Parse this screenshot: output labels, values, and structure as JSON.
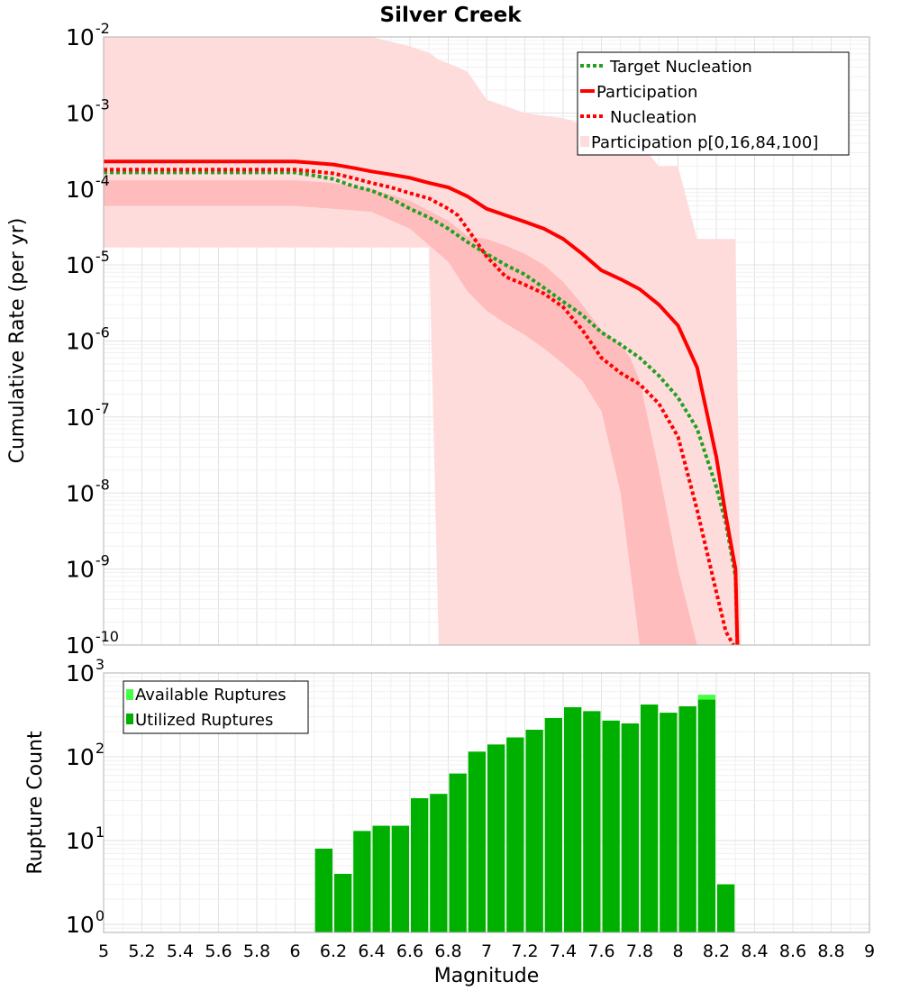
{
  "figure": {
    "title": "Silver Creek",
    "xlabel": "Magnitude"
  },
  "chart_data": [
    {
      "type": "line",
      "title": "Silver Creek",
      "ylabel": "Cumulative Rate (per yr)",
      "xlabel": "Magnitude",
      "xlim": [
        5,
        9
      ],
      "ylim": [
        1e-10,
        0.01
      ],
      "yscale": "log",
      "ytick_exponents": [
        "-2",
        "-3",
        "-4",
        "-5",
        "-6",
        "-7",
        "-8",
        "-9",
        "-10"
      ],
      "ytick_values": [
        0.01,
        0.001,
        0.0001,
        1e-05,
        1e-06,
        1e-07,
        1e-08,
        1e-09,
        1e-10
      ],
      "legend_position": "top-right",
      "legend": [
        "Target Nucleation",
        "Participation",
        "Nucleation",
        "Participation p[0,16,84,100]"
      ],
      "bands": [
        {
          "name": "Participation p[0,100]",
          "color": "#ffdcdc",
          "x": [
            5.0,
            5.2,
            5.4,
            5.6,
            5.8,
            6.0,
            6.2,
            6.4,
            6.6,
            6.7,
            6.75,
            6.8,
            6.9,
            7.0,
            7.2,
            7.4,
            7.6,
            7.8,
            7.9,
            8.0,
            8.1,
            8.2,
            8.3,
            8.33
          ],
          "upper": [
            0.01,
            0.01,
            0.01,
            0.01,
            0.01,
            0.01,
            0.01,
            0.01,
            0.0075,
            0.0062,
            0.005,
            0.0045,
            0.0035,
            0.0015,
            0.001,
            0.00085,
            0.0006,
            0.0004,
            0.0002,
            0.0002,
            2.2e-05,
            2.2e-05,
            2.2e-05,
            1e-10
          ],
          "lower": [
            1.7e-05,
            1.7e-05,
            1.7e-05,
            1.7e-05,
            1.7e-05,
            1.7e-05,
            1.7e-05,
            1.7e-05,
            1.7e-05,
            1.7e-05,
            1e-10,
            1e-10,
            1e-10,
            1e-10,
            1e-10,
            1e-10,
            1e-10,
            1e-10,
            1e-10,
            1e-10,
            1e-10,
            1e-10,
            1e-10,
            1e-10
          ]
        },
        {
          "name": "Participation p[16,84]",
          "color": "#ffbcbc",
          "x": [
            5.0,
            5.2,
            5.4,
            5.6,
            5.8,
            6.0,
            6.2,
            6.4,
            6.6,
            6.8,
            6.9,
            7.0,
            7.1,
            7.2,
            7.3,
            7.4,
            7.5,
            7.6,
            7.7,
            7.75,
            7.8,
            7.9,
            8.0,
            8.1,
            8.13
          ],
          "upper": [
            0.00013,
            0.00013,
            0.00013,
            0.00013,
            0.00013,
            0.00013,
            0.00012,
            0.0001,
            7e-05,
            3.8e-05,
            2.4e-05,
            2.2e-05,
            1.8e-05,
            1.4e-05,
            1e-05,
            6e-06,
            3e-06,
            1.4e-06,
            9e-07,
            6e-07,
            3e-07,
            2e-08,
            1e-09,
            1e-10,
            1e-10
          ],
          "lower": [
            6e-05,
            6e-05,
            6e-05,
            6e-05,
            6e-05,
            6e-05,
            5.5e-05,
            5e-05,
            3e-05,
            1.1e-05,
            4.5e-06,
            2.5e-06,
            1.7e-06,
            1.2e-06,
            8e-07,
            5e-07,
            3e-07,
            1.2e-07,
            1e-08,
            1e-09,
            1e-10,
            1e-10,
            1e-10,
            1e-10,
            1e-10
          ]
        }
      ],
      "series": [
        {
          "name": "Target Nucleation",
          "color": "#22a022",
          "dash": "dotted",
          "x": [
            5.0,
            5.2,
            5.4,
            5.6,
            5.8,
            6.0,
            6.1,
            6.2,
            6.3,
            6.4,
            6.5,
            6.6,
            6.7,
            6.8,
            6.9,
            7.0,
            7.1,
            7.2,
            7.3,
            7.4,
            7.5,
            7.6,
            7.7,
            7.8,
            7.9,
            8.0,
            8.1,
            8.2,
            8.25,
            8.3,
            8.31
          ],
          "values": [
            0.000165,
            0.000165,
            0.000165,
            0.000165,
            0.000165,
            0.000165,
            0.00015,
            0.000135,
            0.00011,
            9.5e-05,
            7.5e-05,
            5.5e-05,
            4.2e-05,
            3e-05,
            2e-05,
            1.4e-05,
            1e-05,
            7.5e-06,
            5e-06,
            3.3e-06,
            2.2e-06,
            1.3e-06,
            9e-07,
            6e-07,
            3.5e-07,
            1.8e-07,
            7e-08,
            1.2e-08,
            4e-09,
            8e-10,
            1e-10
          ]
        },
        {
          "name": "Participation",
          "color": "#ff0000",
          "dash": "solid",
          "x": [
            5.0,
            5.2,
            5.4,
            5.6,
            5.8,
            6.0,
            6.1,
            6.2,
            6.3,
            6.4,
            6.5,
            6.6,
            6.7,
            6.8,
            6.9,
            7.0,
            7.1,
            7.2,
            7.3,
            7.4,
            7.5,
            7.6,
            7.7,
            7.8,
            7.9,
            8.0,
            8.1,
            8.2,
            8.25,
            8.3,
            8.31
          ],
          "values": [
            0.00023,
            0.00023,
            0.00023,
            0.00023,
            0.00023,
            0.00023,
            0.00022,
            0.00021,
            0.00019,
            0.00017,
            0.000155,
            0.00014,
            0.00012,
            0.000105,
            8e-05,
            5.5e-05,
            4.5e-05,
            3.7e-05,
            3e-05,
            2.2e-05,
            1.4e-05,
            8.5e-06,
            6.5e-06,
            4.8e-06,
            3e-06,
            1.6e-06,
            4.5e-07,
            3e-08,
            5e-09,
            1e-09,
            1e-10
          ]
        },
        {
          "name": "Nucleation",
          "color": "#ff0000",
          "dash": "dotted",
          "x": [
            5.0,
            5.2,
            5.4,
            5.6,
            5.8,
            6.0,
            6.1,
            6.2,
            6.3,
            6.4,
            6.5,
            6.6,
            6.7,
            6.8,
            6.85,
            6.9,
            7.0,
            7.1,
            7.2,
            7.3,
            7.4,
            7.5,
            7.6,
            7.7,
            7.8,
            7.9,
            8.0,
            8.1,
            8.2,
            8.25,
            8.29
          ],
          "values": [
            0.00018,
            0.00018,
            0.00018,
            0.00018,
            0.00018,
            0.00018,
            0.00017,
            0.00016,
            0.00014,
            0.00012,
            0.000105,
            8.8e-05,
            7.5e-05,
            5.5e-05,
            4.5e-05,
            3e-05,
            1.3e-05,
            7e-06,
            5.5e-06,
            4.2e-06,
            2.8e-06,
            1.4e-06,
            6e-07,
            3.8e-07,
            2.7e-07,
            1.5e-07,
            5.5e-08,
            6e-09,
            5e-10,
            1.5e-10,
            1e-10
          ]
        }
      ]
    },
    {
      "type": "bar",
      "ylabel": "Rupture Count",
      "xlabel": "Magnitude",
      "xlim": [
        5,
        9
      ],
      "ylim": [
        0.8,
        1000
      ],
      "yscale": "log",
      "ytick_exponents": [
        "3",
        "2",
        "1",
        "0"
      ],
      "ytick_values": [
        1000,
        100,
        10,
        1
      ],
      "xticks": [
        "5",
        "5.2",
        "5.4",
        "5.6",
        "5.8",
        "6",
        "6.2",
        "6.4",
        "6.6",
        "6.8",
        "7",
        "7.2",
        "7.4",
        "7.6",
        "7.8",
        "8",
        "8.2",
        "8.4",
        "8.6",
        "8.8",
        "9"
      ],
      "legend_position": "top-left",
      "legend": [
        "Available Ruptures",
        "Utilized Ruptures"
      ],
      "bin_width": 0.1,
      "series": [
        {
          "name": "Available Ruptures",
          "color": "#44ff44",
          "bin_centers": [
            6.15,
            6.25,
            6.35,
            6.45,
            6.55,
            6.65,
            6.75,
            6.85,
            6.95,
            7.05,
            7.15,
            7.25,
            7.35,
            7.45,
            7.55,
            7.65,
            7.75,
            7.85,
            7.95,
            8.05,
            8.15,
            8.25
          ],
          "values": [
            8,
            4,
            13,
            15,
            15,
            32,
            36,
            63,
            115,
            140,
            170,
            210,
            290,
            390,
            350,
            270,
            250,
            420,
            335,
            400,
            550,
            3
          ]
        },
        {
          "name": "Utilized Ruptures",
          "color": "#00b000",
          "bin_centers": [
            6.15,
            6.25,
            6.35,
            6.45,
            6.55,
            6.65,
            6.75,
            6.85,
            6.95,
            7.05,
            7.15,
            7.25,
            7.35,
            7.45,
            7.55,
            7.65,
            7.75,
            7.85,
            7.95,
            8.05,
            8.15,
            8.25
          ],
          "values": [
            8,
            4,
            13,
            15,
            15,
            32,
            36,
            63,
            115,
            140,
            170,
            210,
            290,
            390,
            350,
            270,
            250,
            420,
            335,
            400,
            480,
            3
          ]
        }
      ]
    }
  ]
}
